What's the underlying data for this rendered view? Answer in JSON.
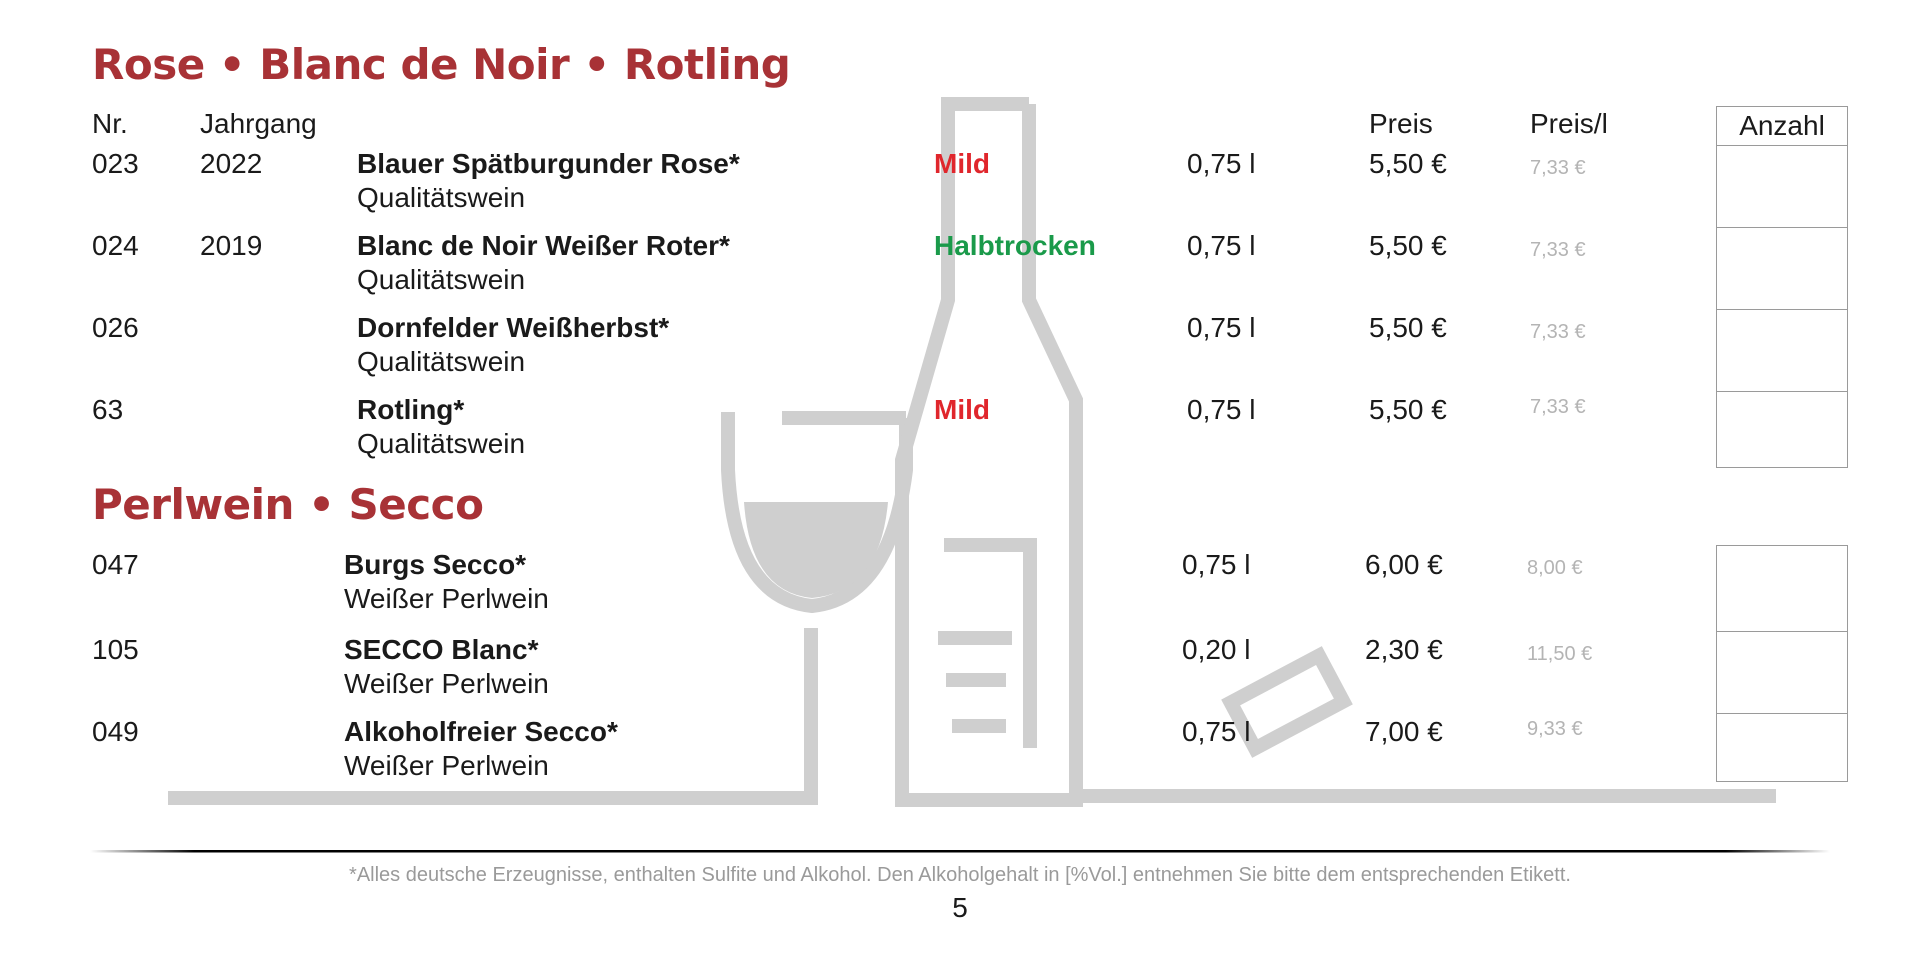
{
  "colors": {
    "title": "#a83236",
    "mild": "#e0262c",
    "halbtrocken": "#1a9a4a",
    "price_per_liter": "#b4b4b4",
    "art": "#cfcfcf"
  },
  "section1": {
    "title": "Rose • Blanc de Noir • Rotling",
    "headers": {
      "nr": "Nr.",
      "jahrgang": "Jahrgang",
      "preis": "Preis",
      "preis_l": "Preis/l",
      "anzahl": "Anzahl"
    },
    "rows": [
      {
        "nr": "023",
        "jahrgang": "2022",
        "name": "Blauer Spätburgunder Rose*",
        "sub": "Qualitätswein",
        "taste": "Mild",
        "taste_color": "mild",
        "vol": "0,75 l",
        "price": "5,50 €",
        "price_l": "7,33 €"
      },
      {
        "nr": "024",
        "jahrgang": "2019",
        "name": "Blanc de Noir Weißer Roter*",
        "sub": "Qualitätswein",
        "taste": "Halbtrocken",
        "taste_color": "halbtrocken",
        "vol": "0,75 l",
        "price": "5,50 €",
        "price_l": "7,33 €"
      },
      {
        "nr": "026",
        "jahrgang": "",
        "name": "Dornfelder Weißherbst*",
        "sub": "Qualitätswein",
        "taste": "",
        "taste_color": "",
        "vol": "0,75 l",
        "price": "5,50 €",
        "price_l": "7,33 €"
      },
      {
        "nr": "63",
        "jahrgang": "",
        "name": "Rotling*",
        "sub": "Qualitätswein",
        "taste": "Mild",
        "taste_color": "mild",
        "vol": "0,75 l",
        "price": "5,50 €",
        "price_l": "7,33 €"
      }
    ]
  },
  "section2": {
    "title": "Perlwein • Secco",
    "rows": [
      {
        "nr": "047",
        "name": "Burgs Secco*",
        "sub": "Weißer Perlwein",
        "vol": "0,75 l",
        "price": "6,00 €",
        "price_l": "8,00 €"
      },
      {
        "nr": "105",
        "name": "SECCO Blanc*",
        "sub": "Weißer Perlwein",
        "vol": "0,20 l",
        "price": "2,30 €",
        "price_l": "11,50 €"
      },
      {
        "nr": "049",
        "name": "Alkoholfreier Secco*",
        "sub": "Weißer Perlwein",
        "vol": "0,75 l",
        "price": "7,00 €",
        "price_l": "9,33 €"
      }
    ]
  },
  "footer": {
    "footnote": "*Alles deutsche Erzeugnisse, enthalten Sulfite und Alkohol. Den Alkoholgehalt in [%Vol.] entnehmen Sie bitte dem entsprechenden Etikett.",
    "page_number": "5"
  }
}
